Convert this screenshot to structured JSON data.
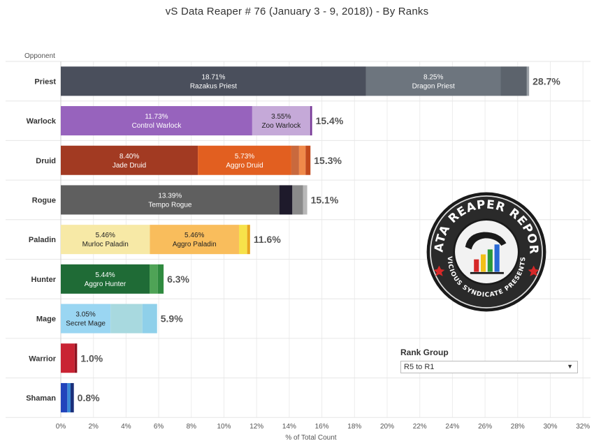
{
  "title": "vS Data Reaper #  76 (January 3 - 9, 2018)) - By Ranks",
  "rank_group": {
    "label": "Rank Group",
    "value": "R5 to R1",
    "arrow_icon": "dropdown-arrow-icon"
  },
  "logo": {
    "top_text": "DATA REAPER REPORT",
    "bottom_text": "VICIOUS SYNDICATE PRESENTS"
  },
  "chart_data": {
    "type": "bar",
    "orientation": "horizontal",
    "stacked": true,
    "row_header": "Opponent",
    "xlabel": "% of Total Count",
    "xlim": [
      0,
      32
    ],
    "xticks": [
      "0%",
      "2%",
      "4%",
      "6%",
      "8%",
      "10%",
      "12%",
      "14%",
      "16%",
      "18%",
      "20%",
      "22%",
      "24%",
      "26%",
      "28%",
      "30%",
      "32%"
    ],
    "grid": true,
    "rows": [
      {
        "class": "Priest",
        "total": 28.7,
        "total_label": "28.7%",
        "segments": [
          {
            "value": 18.71,
            "pct": "18.71%",
            "name": "Razakus Priest",
            "color": "#4a4f5c"
          },
          {
            "value": 8.25,
            "pct": "8.25%",
            "name": "Dragon Priest",
            "color": "#6d757e"
          },
          {
            "value": 1.6,
            "color": "#5c636c"
          },
          {
            "value": 0.14,
            "color": "#9aa0a6"
          }
        ]
      },
      {
        "class": "Warlock",
        "total": 15.4,
        "total_label": "15.4%",
        "segments": [
          {
            "value": 11.73,
            "pct": "11.73%",
            "name": "Control Warlock",
            "color": "#9763bd"
          },
          {
            "value": 3.55,
            "pct": "3.55%",
            "name": "Zoo Warlock",
            "color": "#c5a9d8"
          },
          {
            "value": 0.12,
            "color": "#7a3d99"
          }
        ]
      },
      {
        "class": "Druid",
        "total": 15.3,
        "total_label": "15.3%",
        "segments": [
          {
            "value": 8.4,
            "pct": "8.40%",
            "name": "Jade Druid",
            "color": "#a23a22"
          },
          {
            "value": 5.73,
            "pct": "5.73%",
            "name": "Aggro Druid",
            "color": "#e25f20"
          },
          {
            "value": 0.47,
            "color": "#c9693d"
          },
          {
            "value": 0.4,
            "color": "#f08a4a"
          },
          {
            "value": 0.3,
            "color": "#c24a1c"
          }
        ]
      },
      {
        "class": "Rogue",
        "total": 15.1,
        "total_label": "15.1%",
        "segments": [
          {
            "value": 13.39,
            "pct": "13.39%",
            "name": "Tempo Rogue",
            "color": "#5f5f5f"
          },
          {
            "value": 0.8,
            "color": "#1e1a2b"
          },
          {
            "value": 0.65,
            "color": "#8a8a8a"
          },
          {
            "value": 0.26,
            "color": "#b8b8b8"
          }
        ]
      },
      {
        "class": "Paladin",
        "total": 11.6,
        "total_label": "11.6%",
        "segments": [
          {
            "value": 5.46,
            "pct": "5.46%",
            "name": "Murloc Paladin",
            "color": "#f7e9a6"
          },
          {
            "value": 5.46,
            "pct": "5.46%",
            "name": "Aggro Paladin",
            "color": "#f9bd5c"
          },
          {
            "value": 0.5,
            "color": "#f7e24a"
          },
          {
            "value": 0.18,
            "color": "#e8a520"
          }
        ]
      },
      {
        "class": "Hunter",
        "total": 6.3,
        "total_label": "6.3%",
        "segments": [
          {
            "value": 5.44,
            "pct": "5.44%",
            "name": "Aggro Hunter",
            "color": "#1f6b36"
          },
          {
            "value": 0.5,
            "color": "#4fa356"
          },
          {
            "value": 0.36,
            "color": "#2f8a3f"
          }
        ]
      },
      {
        "class": "Mage",
        "total": 5.9,
        "total_label": "5.9%",
        "segments": [
          {
            "value": 3.05,
            "pct": "3.05%",
            "name": "Secret Mage",
            "color": "#9ad6f2"
          },
          {
            "value": 1.95,
            "color": "#a8d9df"
          },
          {
            "value": 0.9,
            "color": "#8fd0ea"
          }
        ]
      },
      {
        "class": "Warrior",
        "total": 1.0,
        "total_label": "1.0%",
        "segments": [
          {
            "value": 0.85,
            "color": "#c92333"
          },
          {
            "value": 0.15,
            "color": "#8e1422"
          }
        ]
      },
      {
        "class": "Shaman",
        "total": 0.8,
        "total_label": "0.8%",
        "segments": [
          {
            "value": 0.4,
            "color": "#2244bb"
          },
          {
            "value": 0.2,
            "color": "#3a8bd6"
          },
          {
            "value": 0.2,
            "color": "#1a2f7a"
          }
        ]
      }
    ]
  }
}
